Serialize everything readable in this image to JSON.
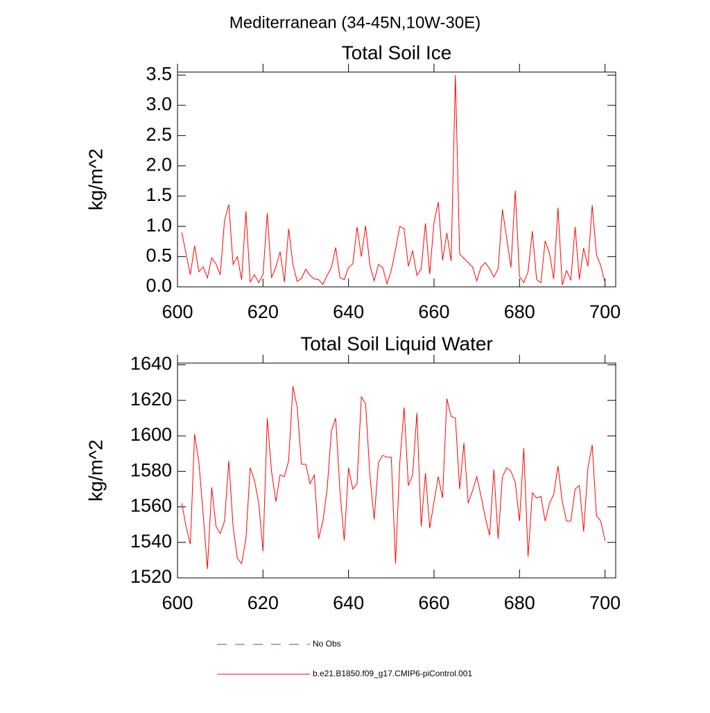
{
  "title": "Mediterranean (34-45N,10W-30E)",
  "legend": [
    {
      "name": "No Obs",
      "color": "#4a5a8a",
      "dashed": true
    },
    {
      "name": "b.e21.B1850.f09_g17.CMIP6-piControl.001",
      "color": "#ff0000",
      "dashed": false
    }
  ],
  "chart_data": [
    {
      "type": "line",
      "title": "Total Soil Ice",
      "ylabel": "kg/m^2",
      "x": [
        601,
        602,
        603,
        604,
        605,
        606,
        607,
        608,
        609,
        610,
        611,
        612,
        613,
        614,
        615,
        616,
        617,
        618,
        619,
        620,
        621,
        622,
        623,
        624,
        625,
        626,
        627,
        628,
        629,
        630,
        631,
        632,
        633,
        634,
        635,
        636,
        637,
        638,
        639,
        640,
        641,
        642,
        643,
        644,
        645,
        646,
        647,
        648,
        649,
        650,
        651,
        652,
        653,
        654,
        655,
        656,
        657,
        658,
        659,
        660,
        661,
        662,
        663,
        664,
        665,
        666,
        667,
        668,
        669,
        670,
        671,
        672,
        673,
        674,
        675,
        676,
        677,
        678,
        679,
        680,
        681,
        682,
        683,
        684,
        685,
        686,
        687,
        688,
        689,
        690,
        691,
        692,
        693,
        694,
        695,
        696,
        697,
        698,
        699,
        700
      ],
      "series": [
        {
          "color": "#ff0000",
          "values": [
            0.9,
            0.55,
            0.2,
            0.68,
            0.25,
            0.33,
            0.15,
            0.48,
            0.38,
            0.2,
            1.1,
            1.36,
            0.37,
            0.5,
            0.12,
            1.25,
            0.08,
            0.2,
            0.07,
            0.2,
            1.22,
            0.15,
            0.33,
            0.58,
            0.08,
            0.96,
            0.37,
            0.09,
            0.14,
            0.29,
            0.19,
            0.13,
            0.12,
            0.04,
            0.19,
            0.32,
            0.65,
            0.15,
            0.12,
            0.32,
            0.38,
            0.99,
            0.5,
            1.01,
            0.36,
            0.1,
            0.37,
            0.32,
            0.05,
            0.27,
            0.62,
            1.0,
            0.96,
            0.34,
            0.6,
            0.19,
            0.3,
            1.05,
            0.21,
            1.07,
            1.4,
            0.44,
            0.89,
            0.43,
            3.5,
            0.54,
            0.47,
            0.4,
            0.33,
            0.1,
            0.33,
            0.4,
            0.3,
            0.16,
            0.3,
            1.28,
            0.8,
            0.32,
            1.59,
            0.17,
            0.07,
            0.25,
            0.92,
            0.12,
            0.07,
            0.76,
            0.56,
            0.13,
            1.31,
            0.03,
            0.27,
            0.11,
            0.99,
            0.12,
            0.64,
            0.34,
            1.35,
            0.53,
            0.35,
            0.07
          ]
        }
      ],
      "xlim": [
        600,
        702.5
      ],
      "xticks": [
        600,
        620,
        640,
        660,
        680,
        700
      ],
      "ylim": [
        0,
        3.55
      ],
      "yticks": [
        {
          "value": 0,
          "label": "0.0"
        },
        {
          "value": 0.5,
          "label": "0.5"
        },
        {
          "value": 1,
          "label": "1.0"
        },
        {
          "value": 1.5,
          "label": "1.5"
        },
        {
          "value": 2,
          "label": "2.0"
        },
        {
          "value": 2.5,
          "label": "2.5"
        },
        {
          "value": 3,
          "label": "3.0"
        },
        {
          "value": 3.5,
          "label": "3.5"
        }
      ]
    },
    {
      "type": "line",
      "title": "Total Soil Liquid Water",
      "ylabel": "kg/m^2",
      "x": [
        601,
        602,
        603,
        604,
        605,
        606,
        607,
        608,
        609,
        610,
        611,
        612,
        613,
        614,
        615,
        616,
        617,
        618,
        619,
        620,
        621,
        622,
        623,
        624,
        625,
        626,
        627,
        628,
        629,
        630,
        631,
        632,
        633,
        634,
        635,
        636,
        637,
        638,
        639,
        640,
        641,
        642,
        643,
        644,
        645,
        646,
        647,
        648,
        649,
        650,
        651,
        652,
        653,
        654,
        655,
        656,
        657,
        658,
        659,
        660,
        661,
        662,
        663,
        664,
        665,
        666,
        667,
        668,
        669,
        670,
        671,
        672,
        673,
        674,
        675,
        676,
        677,
        678,
        679,
        680,
        681,
        682,
        683,
        684,
        685,
        686,
        687,
        688,
        689,
        690,
        691,
        692,
        693,
        694,
        695,
        696,
        697,
        698,
        699,
        700
      ],
      "series": [
        {
          "color": "#ff0000",
          "values": [
            1562,
            1549,
            1539,
            1601,
            1585,
            1556,
            1525,
            1571,
            1549,
            1545,
            1552,
            1586,
            1549,
            1531,
            1528,
            1542,
            1582,
            1575,
            1562,
            1535,
            1610,
            1580,
            1563,
            1578,
            1577,
            1586,
            1628,
            1616,
            1584,
            1584,
            1573,
            1578,
            1542,
            1552,
            1570,
            1603,
            1610,
            1569,
            1541,
            1582,
            1570,
            1573,
            1622,
            1618,
            1578,
            1553,
            1585,
            1589,
            1588,
            1588,
            1528,
            1585,
            1616,
            1572,
            1578,
            1613,
            1549,
            1579,
            1548,
            1563,
            1577,
            1565,
            1621,
            1611,
            1610,
            1570,
            1596,
            1562,
            1569,
            1577,
            1566,
            1554,
            1544,
            1581,
            1542,
            1577,
            1582,
            1580,
            1574,
            1552,
            1593,
            1532,
            1568,
            1565,
            1566,
            1552,
            1562,
            1567,
            1583,
            1563,
            1552,
            1552,
            1570,
            1572,
            1546,
            1582,
            1595,
            1555,
            1552,
            1541
          ]
        }
      ],
      "xlim": [
        600,
        702.5
      ],
      "xticks": [
        600,
        620,
        640,
        660,
        680,
        700
      ],
      "ylim": [
        1520,
        1641
      ],
      "yticks": [
        1520,
        1540,
        1560,
        1580,
        1600,
        1620,
        1640
      ]
    }
  ]
}
